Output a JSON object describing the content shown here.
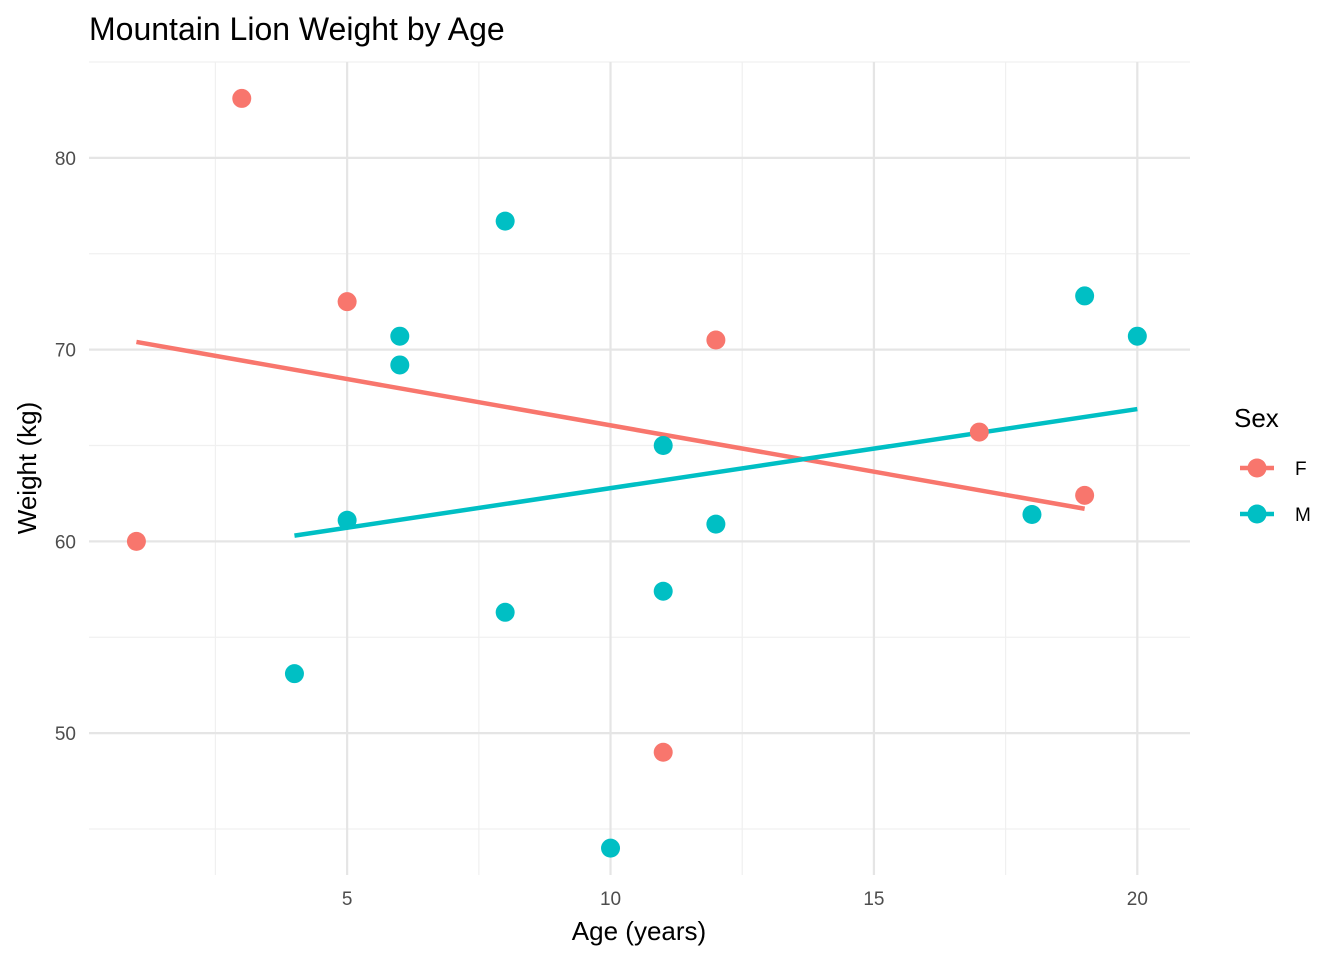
{
  "chart_data": {
    "type": "scatter",
    "title": "Mountain Lion Weight by Age",
    "xlabel": "Age (years)",
    "ylabel": "Weight (kg)",
    "xlim": [
      0.1,
      21.0
    ],
    "ylim": [
      42.6,
      85.0
    ],
    "x_ticks": [
      5,
      10,
      15,
      20
    ],
    "y_ticks": [
      50,
      60,
      70,
      80
    ],
    "x_tick_labels": [
      "5",
      "10",
      "15",
      "20"
    ],
    "y_tick_labels": [
      "50",
      "60",
      "70",
      "80"
    ],
    "grid": true,
    "legend": {
      "title": "Sex",
      "position": "right"
    },
    "series": [
      {
        "name": "F",
        "color": "#F8766D",
        "points": [
          {
            "x": 1,
            "y": 60.0
          },
          {
            "x": 3,
            "y": 83.1
          },
          {
            "x": 5,
            "y": 72.5
          },
          {
            "x": 11,
            "y": 49.0
          },
          {
            "x": 12,
            "y": 70.5
          },
          {
            "x": 17,
            "y": 65.7
          },
          {
            "x": 19,
            "y": 62.4
          }
        ],
        "trend": {
          "x": [
            1,
            19
          ],
          "y": [
            70.4,
            61.7
          ]
        }
      },
      {
        "name": "M",
        "color": "#00BFC4",
        "points": [
          {
            "x": 4,
            "y": 53.1
          },
          {
            "x": 5,
            "y": 61.1
          },
          {
            "x": 6,
            "y": 70.7
          },
          {
            "x": 6,
            "y": 69.2
          },
          {
            "x": 8,
            "y": 76.7
          },
          {
            "x": 8,
            "y": 56.3
          },
          {
            "x": 10,
            "y": 44.0
          },
          {
            "x": 11,
            "y": 65.0
          },
          {
            "x": 11,
            "y": 57.4
          },
          {
            "x": 12,
            "y": 60.9
          },
          {
            "x": 18,
            "y": 61.4
          },
          {
            "x": 19,
            "y": 72.8
          },
          {
            "x": 20,
            "y": 70.7
          }
        ],
        "trend": {
          "x": [
            4,
            20
          ],
          "y": [
            60.3,
            66.9
          ]
        }
      }
    ]
  }
}
